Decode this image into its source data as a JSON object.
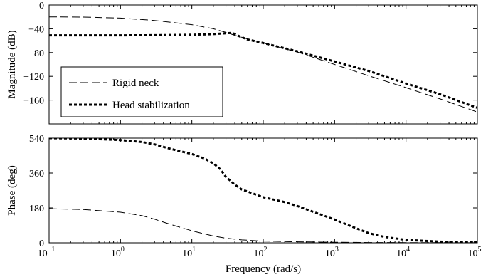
{
  "chart_data": [
    {
      "type": "line",
      "xlabel": "",
      "ylabel": "Magnitude (dB)",
      "xscale": "log",
      "xlim": [
        0.1,
        100000
      ],
      "ylim": [
        -200,
        0
      ],
      "yticks": [
        {
          "value": 0,
          "label": "0"
        },
        {
          "value": -40,
          "label": "−40"
        },
        {
          "value": -80,
          "label": "−80"
        },
        {
          "value": -120,
          "label": "−120"
        },
        {
          "value": -160,
          "label": "−160"
        }
      ],
      "grid": false,
      "legend": {
        "placement": "bottom-left"
      },
      "series": [
        {
          "name": "Rigid neck",
          "style": "dashed",
          "x": [
            0.1,
            0.3,
            1,
            3,
            10,
            20,
            30,
            40,
            60,
            100,
            300,
            1000,
            3000,
            10000,
            30000,
            100000
          ],
          "y": [
            -20,
            -20.3,
            -22,
            -26,
            -33,
            -40,
            -46,
            -51,
            -57,
            -64,
            -79,
            -100,
            -119,
            -139,
            -158,
            -180
          ]
        },
        {
          "name": "Head stabilization",
          "style": "dotted-thick",
          "x": [
            0.1,
            0.3,
            1,
            3,
            10,
            20,
            30,
            37,
            45,
            60,
            100,
            300,
            1000,
            3000,
            10000,
            30000,
            100000
          ],
          "y": [
            -51,
            -51,
            -51,
            -50.8,
            -50,
            -49,
            -47.5,
            -47,
            -52,
            -58,
            -64,
            -78,
            -95,
            -111,
            -132,
            -150,
            -173
          ]
        }
      ]
    },
    {
      "type": "line",
      "xlabel": "Frequency  (rad/s)",
      "ylabel": "Phase (deg)",
      "xscale": "log",
      "xlim": [
        0.1,
        100000
      ],
      "ylim": [
        0,
        540
      ],
      "xticks": [
        {
          "value": 0.1,
          "base": "10",
          "exp": "−1"
        },
        {
          "value": 1,
          "base": "10",
          "exp": "0"
        },
        {
          "value": 10,
          "base": "10",
          "exp": "1"
        },
        {
          "value": 100,
          "base": "10",
          "exp": "2"
        },
        {
          "value": 1000,
          "base": "10",
          "exp": "3"
        },
        {
          "value": 10000,
          "base": "10",
          "exp": "4"
        },
        {
          "value": 100000,
          "base": "10",
          "exp": "5"
        }
      ],
      "yticks": [
        {
          "value": 0,
          "label": "0"
        },
        {
          "value": 180,
          "label": "180"
        },
        {
          "value": 360,
          "label": "360"
        },
        {
          "value": 540,
          "label": "540"
        }
      ],
      "grid": false,
      "series": [
        {
          "name": "Rigid neck",
          "style": "dashed",
          "x": [
            0.1,
            0.3,
            1,
            2,
            3,
            5,
            10,
            20,
            30,
            50,
            100,
            300,
            1000,
            3000,
            10000,
            100000
          ],
          "y": [
            176,
            172,
            158,
            140,
            122,
            95,
            62,
            35,
            24,
            15,
            9,
            5,
            3,
            1.5,
            1,
            0.5
          ]
        },
        {
          "name": "Head stabilization",
          "style": "dotted-thick",
          "x": [
            0.1,
            0.3,
            1,
            2,
            3,
            5,
            10,
            15,
            20,
            25,
            30,
            40,
            50,
            60,
            100,
            200,
            300,
            500,
            1000,
            2000,
            3000,
            5000,
            10000,
            30000,
            100000
          ],
          "y": [
            540,
            538,
            530,
            520,
            508,
            485,
            458,
            435,
            410,
            380,
            340,
            300,
            275,
            265,
            235,
            210,
            190,
            160,
            120,
            75,
            50,
            30,
            15,
            6,
            2
          ]
        }
      ]
    }
  ]
}
